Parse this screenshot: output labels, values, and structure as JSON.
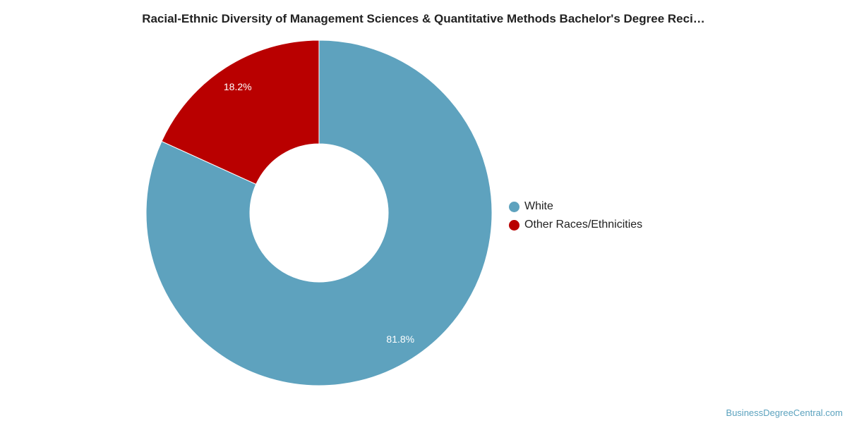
{
  "chart_data": {
    "type": "pie",
    "title": "Racial-Ethnic Diversity of Management Sciences & Quantitative Methods Bachelor's Degree Reci…",
    "categories": [
      "White",
      "Other Races/Ethnicities"
    ],
    "values": [
      81.8,
      18.2
    ],
    "data_labels": [
      "81.8%",
      "18.2%"
    ],
    "colors": [
      "#5ea2be",
      "#b90000"
    ],
    "donut": true,
    "legend_position": "right"
  },
  "watermark": "BusinessDegreeCentral.com"
}
